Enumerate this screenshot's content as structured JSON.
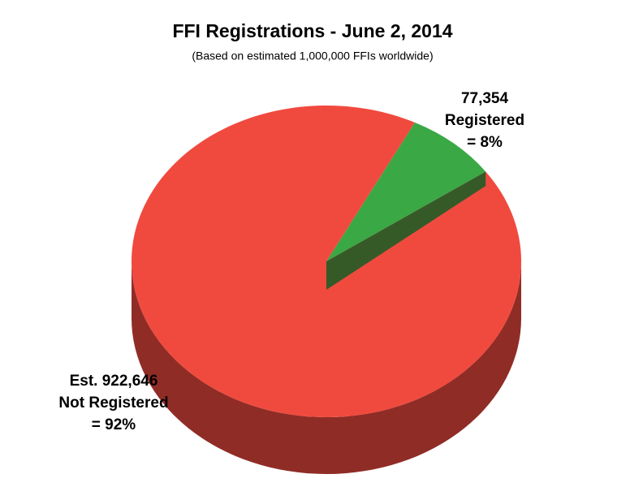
{
  "chart_data": {
    "type": "pie",
    "title": "FFI Registrations - June 2, 2014",
    "subtitle": "(Based on estimated 1,000,000 FFIs worldwide)",
    "categories": [
      "Registered",
      "Not Registered"
    ],
    "values": [
      77354,
      922646
    ],
    "value_labels": [
      "77,354",
      "Est. 922,646"
    ],
    "share_labels": [
      "= 8%",
      "= 92%"
    ],
    "colors": [
      "#3aa845",
      "#f04a3f"
    ]
  }
}
